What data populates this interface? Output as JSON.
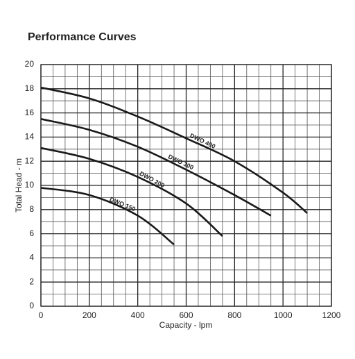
{
  "chart_data": {
    "type": "line",
    "title": "Performance Curves",
    "xlabel": "Capacity - lpm",
    "ylabel": "Total Head - m",
    "xlim": [
      0,
      1200
    ],
    "xticks": [
      0,
      200,
      400,
      600,
      800,
      1000,
      1200
    ],
    "ylim": [
      0,
      20
    ],
    "yticks": [
      0,
      2,
      4,
      6,
      8,
      10,
      12,
      14,
      16,
      18,
      20
    ],
    "grid": true,
    "series": [
      {
        "name": "DWO 400",
        "color": "#1a1a1a",
        "x": [
          0,
          200,
          400,
          600,
          800,
          1000,
          1100
        ],
        "values": [
          18.1,
          17.2,
          15.7,
          13.9,
          12.0,
          9.4,
          7.7
        ]
      },
      {
        "name": "DWO 300",
        "color": "#1a1a1a",
        "x": [
          0,
          200,
          400,
          600,
          800,
          950
        ],
        "values": [
          15.5,
          14.6,
          13.2,
          11.3,
          9.2,
          7.5
        ]
      },
      {
        "name": "DWO 200",
        "color": "#1a1a1a",
        "x": [
          0,
          200,
          400,
          600,
          750
        ],
        "values": [
          13.1,
          12.2,
          10.7,
          8.5,
          5.8
        ]
      },
      {
        "name": "DWO 150",
        "color": "#1a1a1a",
        "x": [
          0,
          200,
          400,
          550
        ],
        "values": [
          9.8,
          9.2,
          7.5,
          5.1
        ]
      }
    ]
  }
}
